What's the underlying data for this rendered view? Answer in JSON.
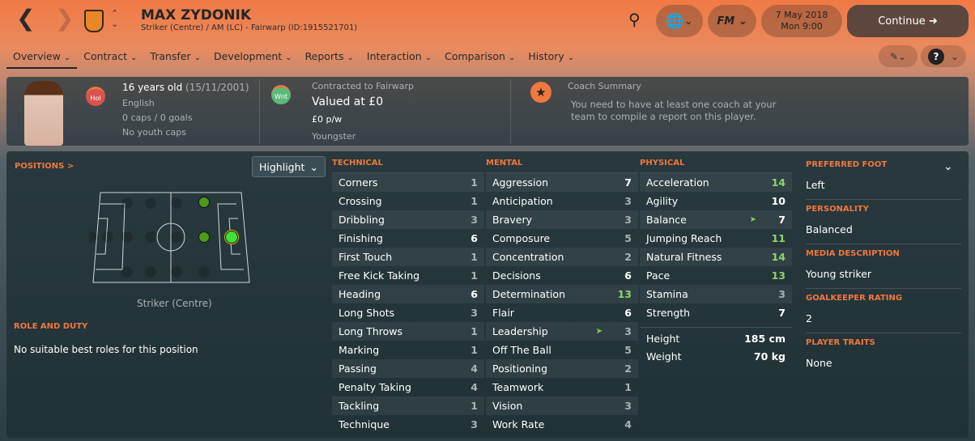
{
  "header": {
    "name": "MAX ZYDONIK",
    "subtitle": "Striker (Centre) / AM (LC) - Fairwarp (ID:1915521701)",
    "date": "7 May 2018",
    "time": "Mon 9:00",
    "continue": "Continue",
    "fm": "FM"
  },
  "tabs": [
    "Overview",
    "Contract",
    "Transfer",
    "Development",
    "Reports",
    "Interaction",
    "Comparison",
    "History"
  ],
  "info": {
    "age": "16 years old",
    "dob": "(15/11/2001)",
    "nationality": "English",
    "caps": "0 caps / 0 goals",
    "youth_caps": "No youth caps",
    "badge1": "Hol",
    "badge2": "Wnt",
    "contracted": "Contracted to Fairwarp",
    "value": "Valued at £0",
    "wage": "£0 p/w",
    "status": "Youngster",
    "coach_title": "Coach Summary",
    "coach_text": "You need to have at least one coach at your team to compile a report on this player."
  },
  "positions": {
    "title": "POSITIONS >",
    "highlight": "Highlight",
    "selected": "Striker (Centre)",
    "role_title": "ROLE AND DUTY",
    "role_text": "No suitable best roles for this position"
  },
  "technical": {
    "title": "TECHNICAL",
    "items": [
      [
        "Corners",
        1
      ],
      [
        "Crossing",
        1
      ],
      [
        "Dribbling",
        3
      ],
      [
        "Finishing",
        6
      ],
      [
        "First Touch",
        1
      ],
      [
        "Free Kick Taking",
        1
      ],
      [
        "Heading",
        6
      ],
      [
        "Long Shots",
        3
      ],
      [
        "Long Throws",
        1
      ],
      [
        "Marking",
        1
      ],
      [
        "Passing",
        4
      ],
      [
        "Penalty Taking",
        4
      ],
      [
        "Tackling",
        1
      ],
      [
        "Technique",
        3
      ]
    ]
  },
  "mental": {
    "title": "MENTAL",
    "items": [
      [
        "Aggression",
        7
      ],
      [
        "Anticipation",
        3
      ],
      [
        "Bravery",
        3
      ],
      [
        "Composure",
        5
      ],
      [
        "Concentration",
        2
      ],
      [
        "Decisions",
        6
      ],
      [
        "Determination",
        13
      ],
      [
        "Flair",
        6
      ],
      [
        "Leadership",
        3,
        "up"
      ],
      [
        "Off The Ball",
        5
      ],
      [
        "Positioning",
        2
      ],
      [
        "Teamwork",
        1
      ],
      [
        "Vision",
        3
      ],
      [
        "Work Rate",
        4
      ]
    ]
  },
  "physical": {
    "title": "PHYSICAL",
    "items": [
      [
        "Acceleration",
        14
      ],
      [
        "Agility",
        10
      ],
      [
        "Balance",
        7,
        "up"
      ],
      [
        "Jumping Reach",
        11
      ],
      [
        "Natural Fitness",
        14
      ],
      [
        "Pace",
        13
      ],
      [
        "Stamina",
        3
      ],
      [
        "Strength",
        7
      ]
    ],
    "height_label": "Height",
    "height": "185 cm",
    "weight_label": "Weight",
    "weight": "70 kg"
  },
  "side": [
    {
      "title": "PREFERRED FOOT",
      "value": "Left"
    },
    {
      "title": "PERSONALITY",
      "value": "Balanced"
    },
    {
      "title": "MEDIA DESCRIPTION",
      "value": "Young striker"
    },
    {
      "title": "GOALKEEPER RATING",
      "value": "2"
    },
    {
      "title": "PLAYER TRAITS",
      "value": "None"
    }
  ],
  "colors": {
    "accent": "#f0773d",
    "good": "#8fd46a",
    "low": "#aab1b4"
  }
}
